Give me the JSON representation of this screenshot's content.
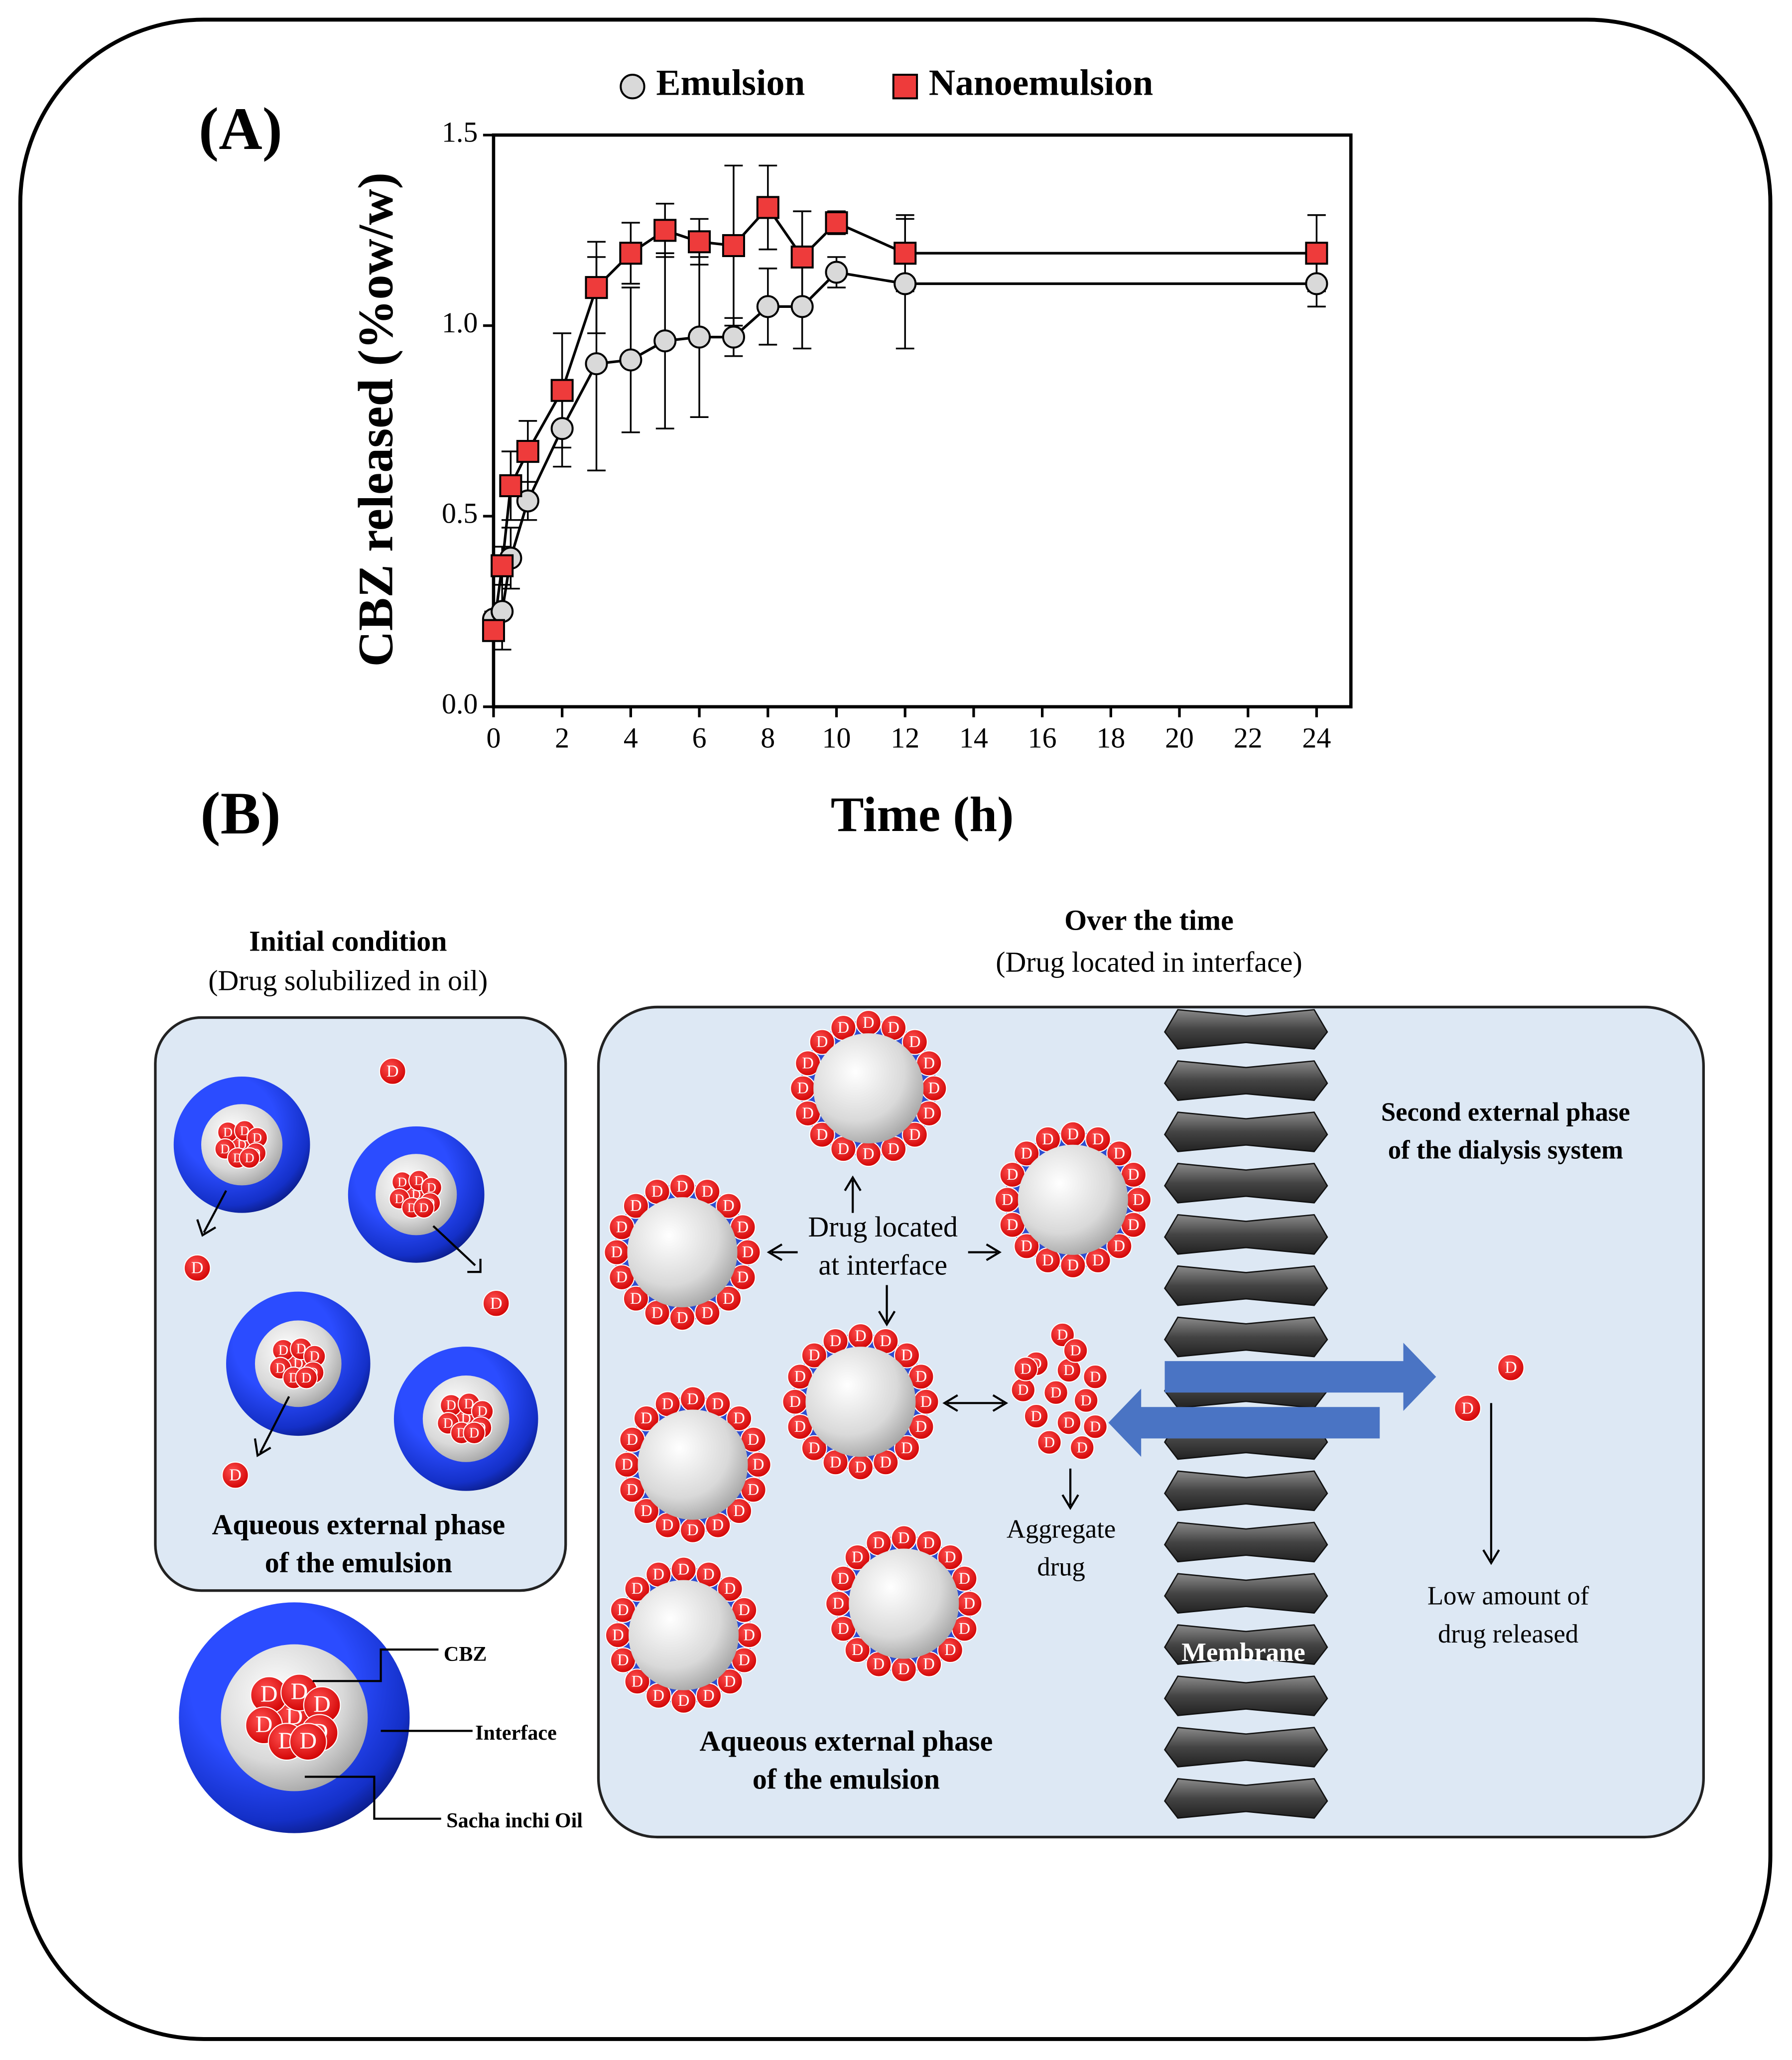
{
  "chart_data": {
    "type": "line",
    "x_label": "Time (h)",
    "y_label": "CBZ released (%ow/w)",
    "x": [
      0,
      0.25,
      0.5,
      1,
      2,
      3,
      4,
      5,
      6,
      7,
      8,
      9,
      10,
      12,
      24
    ],
    "series": [
      {
        "name": "Emulsion",
        "color": "#d9d9d9",
        "marker": "circle",
        "values": [
          0.23,
          0.25,
          0.39,
          0.54,
          0.73,
          0.9,
          0.91,
          0.96,
          0.97,
          0.97,
          1.05,
          1.05,
          1.14,
          1.11,
          1.11
        ],
        "errors": [
          0.02,
          0.1,
          0.08,
          0.05,
          0.1,
          0.28,
          0.19,
          0.23,
          0.21,
          0.05,
          0.1,
          0.11,
          0.04,
          0.17,
          0.06
        ]
      },
      {
        "name": "Nanoemulsion",
        "color": "#ee3b3b",
        "marker": "square",
        "values": [
          0.2,
          0.37,
          0.58,
          0.67,
          0.83,
          1.1,
          1.19,
          1.25,
          1.22,
          1.21,
          1.31,
          1.18,
          1.27,
          1.19,
          1.19
        ],
        "errors": [
          0.02,
          0.05,
          0.09,
          0.08,
          0.15,
          0.12,
          0.08,
          0.07,
          0.06,
          0.21,
          0.11,
          0.12,
          0.03,
          0.1,
          0.1
        ]
      }
    ],
    "xlim": [
      0,
      25
    ],
    "xticks": [
      0,
      2,
      4,
      6,
      8,
      10,
      12,
      14,
      16,
      18,
      20,
      22,
      24
    ],
    "ylim": [
      0,
      1.5
    ],
    "yticks": [
      {
        "value": 0,
        "label": "0.0"
      },
      0.5,
      {
        "value": 1,
        "label": "1.0"
      },
      1.5
    ],
    "legend": "top",
    "grid": false
  },
  "figure": {
    "panel_a": "(A)",
    "panel_b": "(B)"
  },
  "diagram": {
    "initial_title": "Initial condition",
    "initial_subtitle": "(Drug solubilized in oil)",
    "left_phase_1": "Aqueous external phase",
    "left_phase_2": "of the emulsion",
    "cbz": "CBZ",
    "interface": "Interface",
    "oil": "Sacha inchi Oil",
    "over_title": "Over the time",
    "over_subtitle": "(Drug located in interface)",
    "drug_located_1": "Drug located",
    "drug_located_2": "at interface",
    "aggregate_1": "Aggregate",
    "aggregate_2": "drug",
    "second_phase_1": "Second external phase",
    "second_phase_2": "of the dialysis system",
    "low_amount_1": "Low amount of",
    "low_amount_2": "drug released",
    "membrane": "Membrane",
    "right_phase_1": "Aqueous external phase",
    "right_phase_2": "of the emulsion",
    "drug_symbol": "D"
  }
}
